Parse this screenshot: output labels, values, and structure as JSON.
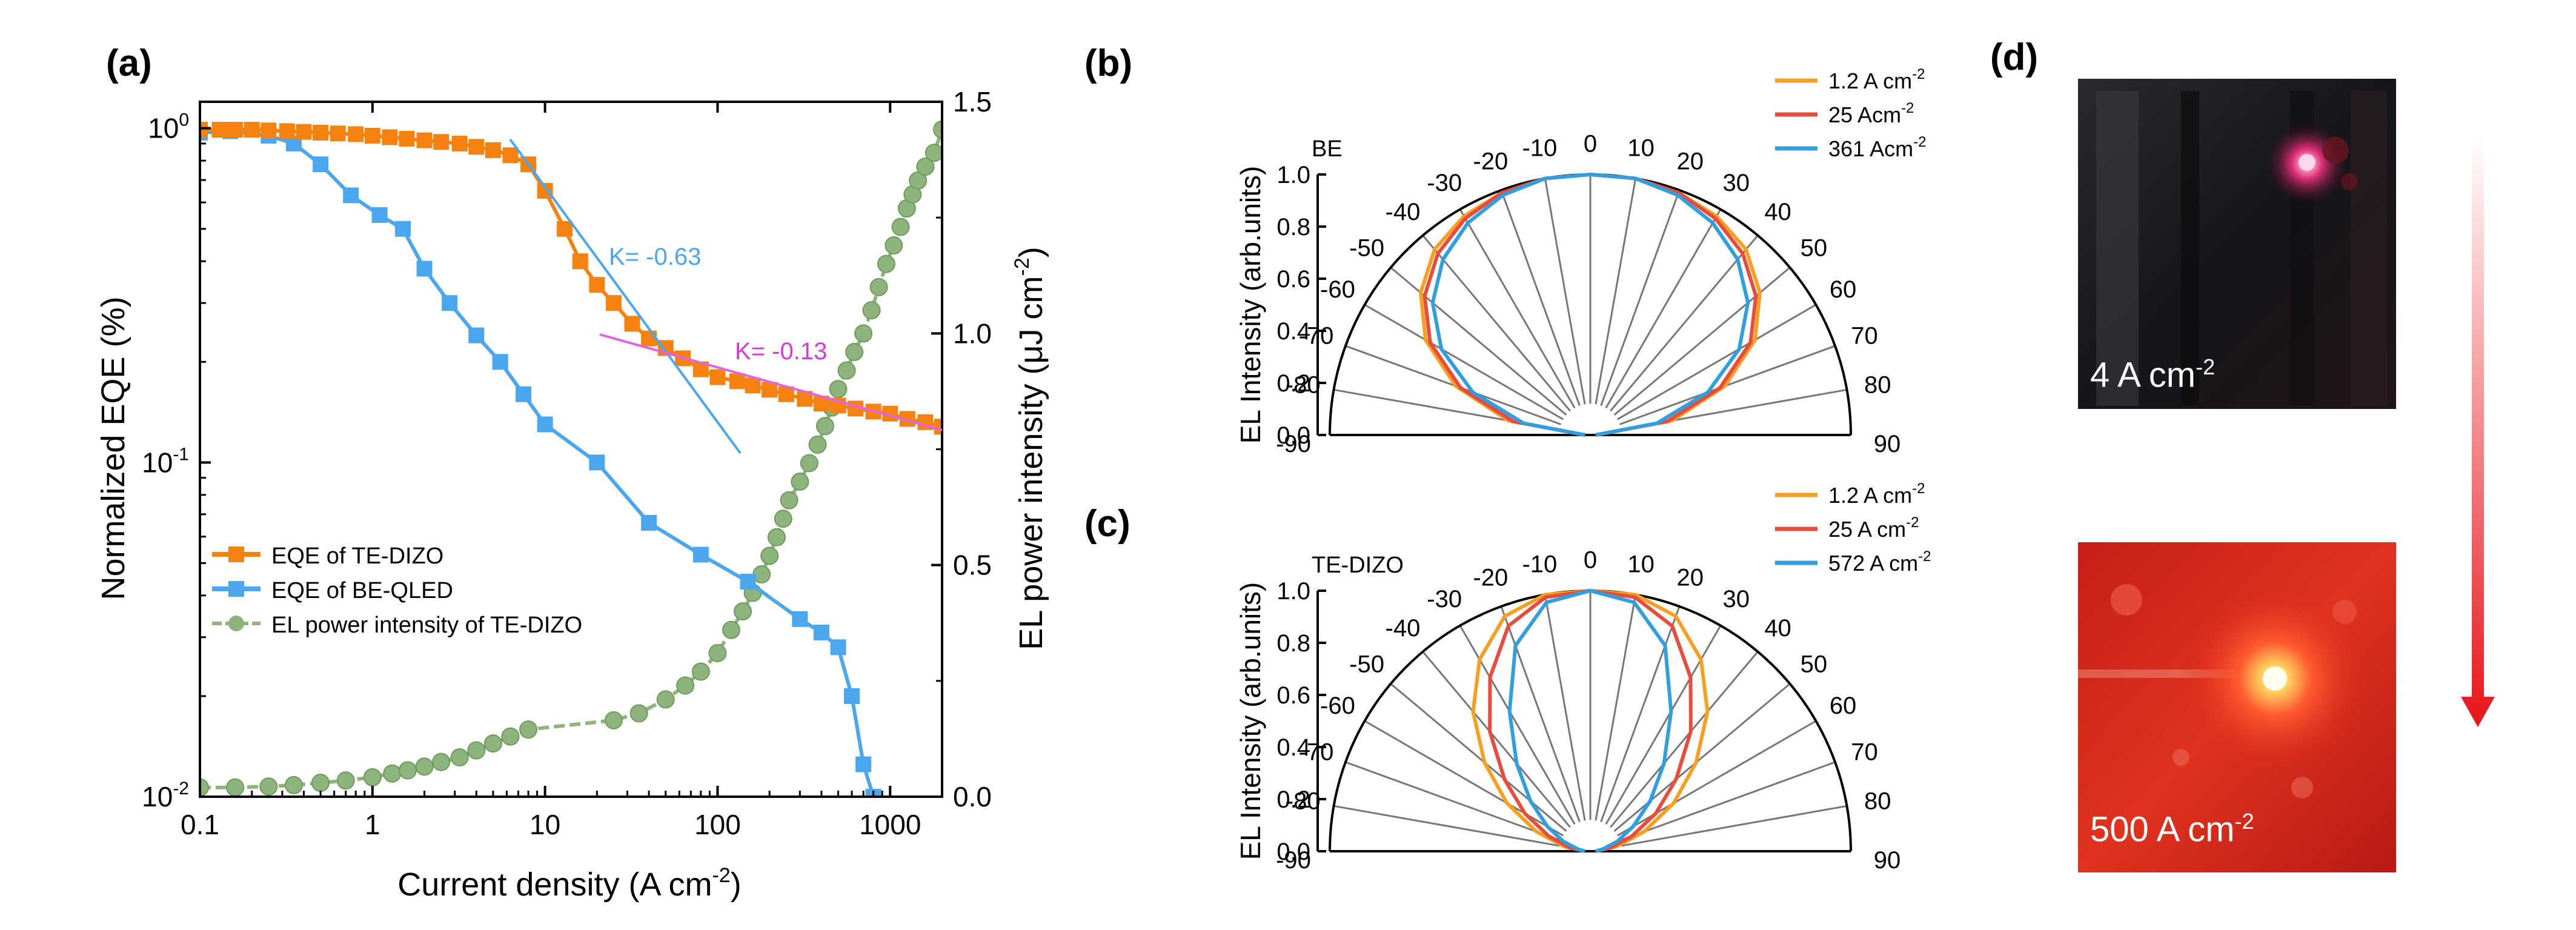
{
  "panels": {
    "a": "(a)",
    "b": "(b)",
    "c": "(c)",
    "d": "(d)"
  },
  "chart_data": [
    {
      "id": "a",
      "type": "line",
      "xlabel_main": "Current density (A cm",
      "xlabel_sup": "-2",
      "xlabel_end": ")",
      "ylabel": "Normalized EQE (%)",
      "ylabel_right_main": "EL power intensity (μJ cm",
      "ylabel_right_sup": "-2",
      "ylabel_right_end": ")",
      "x_scale": "log",
      "xlim": [
        0.1,
        2000
      ],
      "y_scale": "log",
      "ylim": [
        0.01,
        1.2
      ],
      "y2lim": [
        0,
        1.5
      ],
      "x_ticks": [
        {
          "value": 0.1,
          "label": "0.1"
        },
        {
          "value": 1,
          "label": "1"
        },
        {
          "value": 10,
          "label": "10"
        },
        {
          "value": 100,
          "label": "100"
        },
        {
          "value": 1000,
          "label": "1000"
        }
      ],
      "y_ticks": [
        {
          "value": 1,
          "base": "10",
          "exp": "0"
        },
        {
          "value": 0.1,
          "base": "10",
          "exp": "-1"
        },
        {
          "value": 0.01,
          "base": "10",
          "exp": "-2"
        }
      ],
      "y2_ticks": [
        "0.0",
        "0.5",
        "1.0",
        "1.5"
      ],
      "legend_position": "bottom-left",
      "series": [
        {
          "name": "EQE of TE-DIZO",
          "axis": "left",
          "color": "#f5820f",
          "marker": "square",
          "x": [
            0.1,
            0.13,
            0.16,
            0.2,
            0.25,
            0.32,
            0.4,
            0.5,
            0.63,
            0.8,
            1.0,
            1.26,
            1.58,
            2.0,
            2.5,
            3.2,
            4.0,
            5.0,
            6.3,
            8.0,
            10,
            13,
            16,
            20,
            25,
            32,
            40,
            50,
            63,
            80,
            100,
            130,
            160,
            200,
            250,
            320,
            400,
            500,
            630,
            800,
            1000,
            1260,
            1600,
            2000
          ],
          "y": [
            0.99,
            0.99,
            0.99,
            0.99,
            0.985,
            0.98,
            0.975,
            0.97,
            0.965,
            0.96,
            0.95,
            0.94,
            0.93,
            0.92,
            0.91,
            0.9,
            0.88,
            0.86,
            0.83,
            0.78,
            0.65,
            0.5,
            0.4,
            0.34,
            0.3,
            0.26,
            0.235,
            0.22,
            0.205,
            0.19,
            0.18,
            0.175,
            0.17,
            0.165,
            0.16,
            0.155,
            0.15,
            0.148,
            0.145,
            0.142,
            0.14,
            0.135,
            0.132,
            0.128
          ]
        },
        {
          "name": "EQE of BE-QLED",
          "axis": "left",
          "color": "#4aa6ee",
          "marker": "square",
          "x": [
            0.1,
            0.15,
            0.25,
            0.35,
            0.5,
            0.75,
            1.1,
            1.5,
            2.0,
            2.8,
            4.0,
            5.5,
            7.5,
            10,
            20,
            40,
            80,
            150,
            300,
            400,
            500,
            600,
            700,
            800
          ],
          "y": [
            0.97,
            0.98,
            0.95,
            0.9,
            0.78,
            0.63,
            0.55,
            0.5,
            0.38,
            0.3,
            0.24,
            0.2,
            0.16,
            0.13,
            0.1,
            0.066,
            0.053,
            0.044,
            0.034,
            0.031,
            0.028,
            0.02,
            0.0125,
            0.01
          ]
        },
        {
          "name": "EL power intensity of TE-DIZO",
          "axis": "right",
          "color": "#8fb37c",
          "marker": "circle",
          "x": [
            0.1,
            0.16,
            0.25,
            0.35,
            0.5,
            0.7,
            1.0,
            1.3,
            1.6,
            2.0,
            2.5,
            3.2,
            4.0,
            5.0,
            6.3,
            8.0,
            25,
            35,
            50,
            65,
            80,
            100,
            120,
            140,
            160,
            180,
            200,
            220,
            240,
            260,
            300,
            340,
            380,
            420,
            460,
            500,
            560,
            620,
            700,
            780,
            860,
            950,
            1050,
            1150,
            1250,
            1350,
            1450,
            1600,
            1800,
            2000
          ],
          "y": [
            0.02,
            0.02,
            0.022,
            0.025,
            0.03,
            0.035,
            0.042,
            0.05,
            0.057,
            0.065,
            0.075,
            0.085,
            0.1,
            0.115,
            0.13,
            0.145,
            0.165,
            0.18,
            0.21,
            0.24,
            0.27,
            0.31,
            0.36,
            0.4,
            0.44,
            0.48,
            0.52,
            0.56,
            0.6,
            0.64,
            0.68,
            0.72,
            0.76,
            0.8,
            0.84,
            0.88,
            0.92,
            0.96,
            1.0,
            1.05,
            1.1,
            1.15,
            1.19,
            1.23,
            1.27,
            1.3,
            1.33,
            1.36,
            1.39,
            1.44
          ]
        }
      ],
      "annotations": [
        {
          "text": "K= -0.63",
          "color": "#4aa6ee"
        },
        {
          "text": "K= -0.13",
          "color": "#d63ad6"
        }
      ]
    },
    {
      "id": "b",
      "type": "polar",
      "ylabel": "EL Intensity (arb.units)",
      "inset_label": "BE",
      "angle_ticks": [
        "-90",
        "-80",
        "-70",
        "-60",
        "-50",
        "-40",
        "-30",
        "-20",
        "-10",
        "0",
        "10",
        "20",
        "30",
        "40",
        "50",
        "60",
        "70",
        "80",
        "90"
      ],
      "r_ticks": [
        "0.0",
        "0.2",
        "0.4",
        "0.6",
        "0.8",
        "1.0"
      ],
      "legend_position": "top-right",
      "series": [
        {
          "name_main": "1.2 A cm",
          "name_sup": "-2",
          "color": "#f5a020",
          "r": [
            0.02,
            0.32,
            0.55,
            0.73,
            0.85,
            0.93,
            0.97,
            0.99,
            1.0,
            1.0,
            1.0,
            0.99,
            0.97,
            0.93,
            0.85,
            0.73,
            0.55,
            0.32,
            0.02
          ]
        },
        {
          "name_main": "25 Acm",
          "name_sup": "-2",
          "color": "#e84c3d",
          "r": [
            0.02,
            0.3,
            0.53,
            0.71,
            0.83,
            0.91,
            0.96,
            0.99,
            1.0,
            1.0,
            1.0,
            0.99,
            0.96,
            0.91,
            0.83,
            0.71,
            0.53,
            0.3,
            0.02
          ]
        },
        {
          "name_main": "361 Acm",
          "name_sup": "-2",
          "color": "#2f9fe0",
          "r": [
            0.02,
            0.26,
            0.48,
            0.66,
            0.79,
            0.88,
            0.94,
            0.98,
            1.0,
            1.0,
            1.0,
            0.98,
            0.94,
            0.88,
            0.79,
            0.66,
            0.48,
            0.26,
            0.02
          ]
        }
      ]
    },
    {
      "id": "c",
      "type": "polar",
      "ylabel": "EL Intensity (arb.units)",
      "inset_label": "TE-DIZO",
      "angle_ticks": [
        "-90",
        "-80",
        "-70",
        "-60",
        "-50",
        "-40",
        "-30",
        "-20",
        "-10",
        "0",
        "10",
        "20",
        "30",
        "40",
        "50",
        "60",
        "70",
        "80",
        "90"
      ],
      "r_ticks": [
        "0.0",
        "0.2",
        "0.4",
        "0.6",
        "0.8",
        "1.0"
      ],
      "legend_position": "top-right",
      "series": [
        {
          "name_main": "1.2 A cm",
          "name_sup": "-2",
          "color": "#f5a020",
          "r": [
            0.02,
            0.1,
            0.22,
            0.37,
            0.53,
            0.7,
            0.85,
            0.96,
            1.0,
            1.0,
            1.0,
            0.96,
            0.85,
            0.7,
            0.53,
            0.37,
            0.22,
            0.1,
            0.02
          ]
        },
        {
          "name_main": "25  A cm",
          "name_sup": "-2",
          "color": "#e84c3d",
          "r": [
            0.02,
            0.08,
            0.17,
            0.29,
            0.43,
            0.6,
            0.77,
            0.92,
            0.99,
            1.0,
            0.99,
            0.92,
            0.77,
            0.6,
            0.43,
            0.29,
            0.17,
            0.08,
            0.02
          ]
        },
        {
          "name_main": "572 A cm",
          "name_sup": "-2",
          "color": "#2f9fe0",
          "r": [
            0.02,
            0.05,
            0.11,
            0.19,
            0.3,
            0.44,
            0.62,
            0.84,
            0.97,
            1.0,
            0.97,
            0.84,
            0.62,
            0.44,
            0.3,
            0.19,
            0.11,
            0.05,
            0.02
          ]
        }
      ]
    }
  ],
  "photos": [
    {
      "caption_main": "4 A cm",
      "caption_sup": "-2"
    },
    {
      "caption_main": "500 A cm",
      "caption_sup": "-2"
    }
  ]
}
